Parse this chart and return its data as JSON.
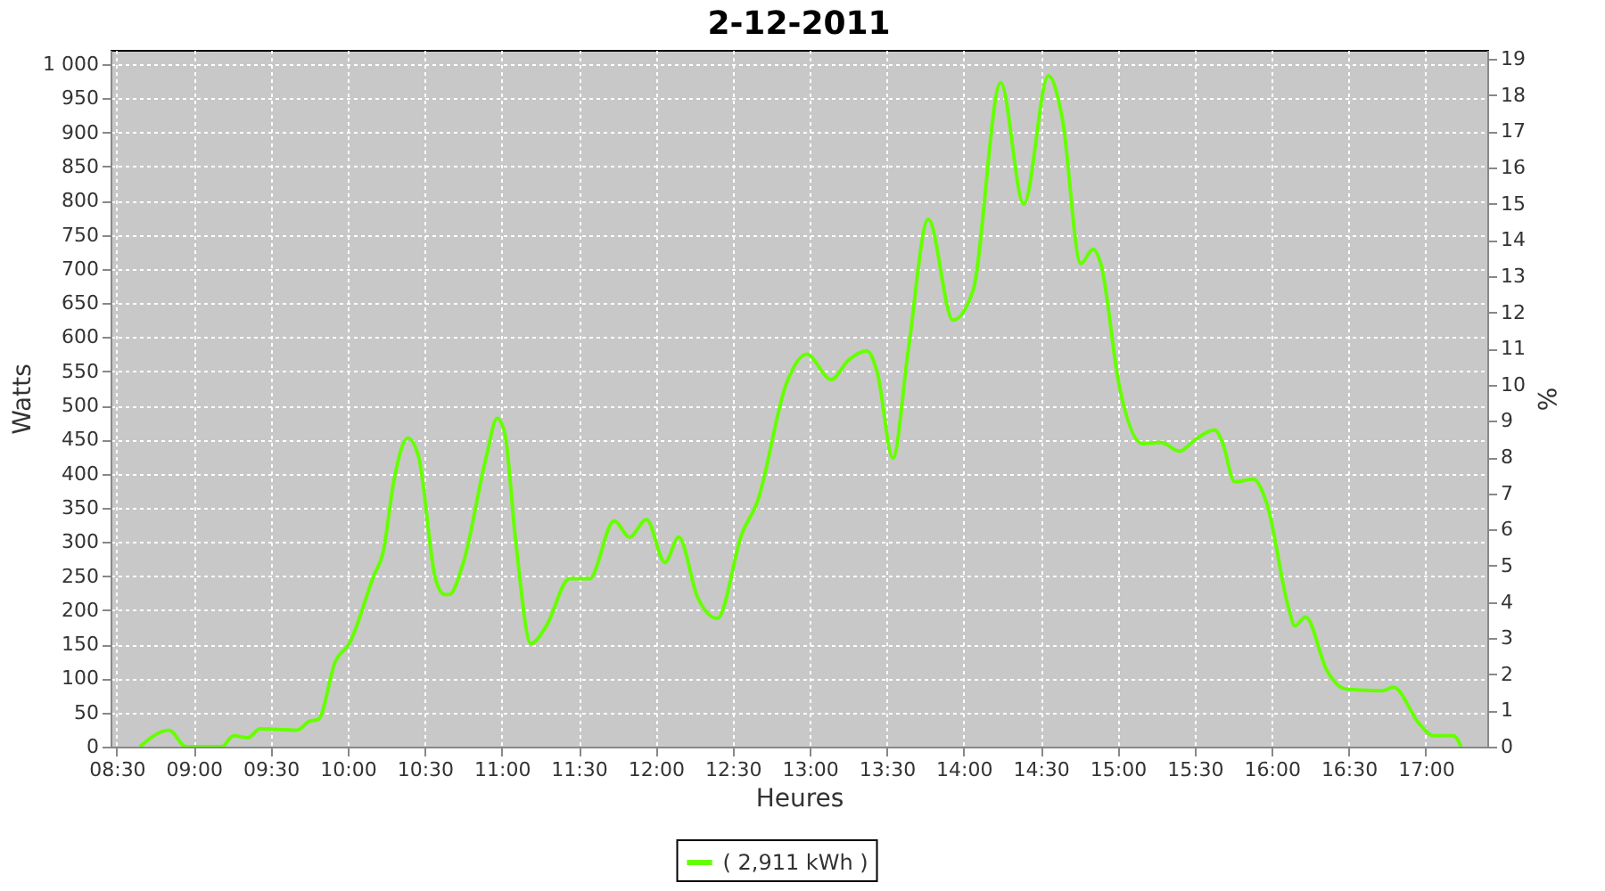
{
  "chart_data": {
    "type": "line",
    "title": "2-12-2011",
    "xlabel": "Heures",
    "ylabel": "Watts",
    "y2label": "%",
    "x": [
      8.65,
      8.84,
      8.95,
      9.18,
      9.26,
      9.35,
      9.43,
      9.67,
      9.75,
      9.81,
      9.92,
      10.01,
      10.17,
      10.23,
      10.3,
      10.39,
      10.46,
      10.57,
      10.63,
      10.66,
      10.75,
      10.9,
      10.97,
      11.02,
      11.09,
      11.19,
      11.29,
      11.44,
      11.57,
      11.73,
      11.83,
      11.94,
      12.06,
      12.15,
      12.27,
      12.4,
      12.56,
      12.66,
      12.85,
      12.98,
      13.14,
      13.25,
      13.37,
      13.44,
      13.54,
      13.64,
      13.77,
      13.93,
      14.06,
      14.24,
      14.39,
      14.55,
      14.64,
      14.76,
      14.84,
      14.89,
      15.01,
      15.16,
      15.28,
      15.4,
      15.51,
      15.63,
      15.68,
      15.76,
      15.88,
      15.97,
      16.11,
      16.15,
      16.22,
      16.36,
      16.47,
      16.57,
      16.72,
      16.79,
      16.96,
      17.05,
      17.18,
      17.23
    ],
    "series": [
      {
        "name": "( 2,911 kWh )",
        "color": "#66ff00",
        "values": [
          0,
          24,
          0,
          0,
          16,
          13,
          26,
          24,
          37,
          40,
          125,
          151,
          251,
          285,
          390,
          452,
          425,
          246,
          223,
          223,
          269,
          425,
          481,
          459,
          303,
          151,
          177,
          246,
          246,
          331,
          307,
          333,
          270,
          307,
          220,
          188,
          312,
          359,
          533,
          575,
          538,
          566,
          580,
          547,
          423,
          581,
          773,
          625,
          668,
          973,
          795,
          983,
          921,
          708,
          729,
          708,
          529,
          444,
          446,
          433,
          451,
          464,
          446,
          388,
          392,
          355,
          203,
          177,
          190,
          111,
          85,
          83,
          82,
          87,
          33,
          16,
          16,
          0
        ]
      }
    ],
    "xlim": [
      8.46,
      17.4
    ],
    "xticks": [
      {
        "value": 8.5,
        "label": "08:30"
      },
      {
        "value": 9,
        "label": "09:00"
      },
      {
        "value": 9.5,
        "label": "09:30"
      },
      {
        "value": 10,
        "label": "10:00"
      },
      {
        "value": 10.5,
        "label": "10:30"
      },
      {
        "value": 11,
        "label": "11:00"
      },
      {
        "value": 11.5,
        "label": "11:30"
      },
      {
        "value": 12,
        "label": "12:00"
      },
      {
        "value": 12.5,
        "label": "12:30"
      },
      {
        "value": 13,
        "label": "13:00"
      },
      {
        "value": 13.5,
        "label": "13:30"
      },
      {
        "value": 14,
        "label": "14:00"
      },
      {
        "value": 14.5,
        "label": "14:30"
      },
      {
        "value": 15,
        "label": "15:00"
      },
      {
        "value": 15.5,
        "label": "15:30"
      },
      {
        "value": 16,
        "label": "16:00"
      },
      {
        "value": 16.5,
        "label": "16:30"
      },
      {
        "value": 17,
        "label": "17:00"
      }
    ],
    "ylim": [
      0,
      1021
    ],
    "yticks": [
      0,
      50,
      100,
      150,
      200,
      250,
      300,
      350,
      400,
      450,
      500,
      550,
      600,
      650,
      700,
      750,
      800,
      850,
      900,
      950,
      {
        "value": 1000,
        "label": "1 000"
      }
    ],
    "y2lim": [
      0,
      19.25
    ],
    "y2ticks": [
      0,
      1,
      2,
      3,
      4,
      5,
      6,
      7,
      8,
      9,
      10,
      11,
      12,
      13,
      14,
      15,
      16,
      17,
      18,
      19
    ],
    "grid": true,
    "legend": "bottom"
  }
}
